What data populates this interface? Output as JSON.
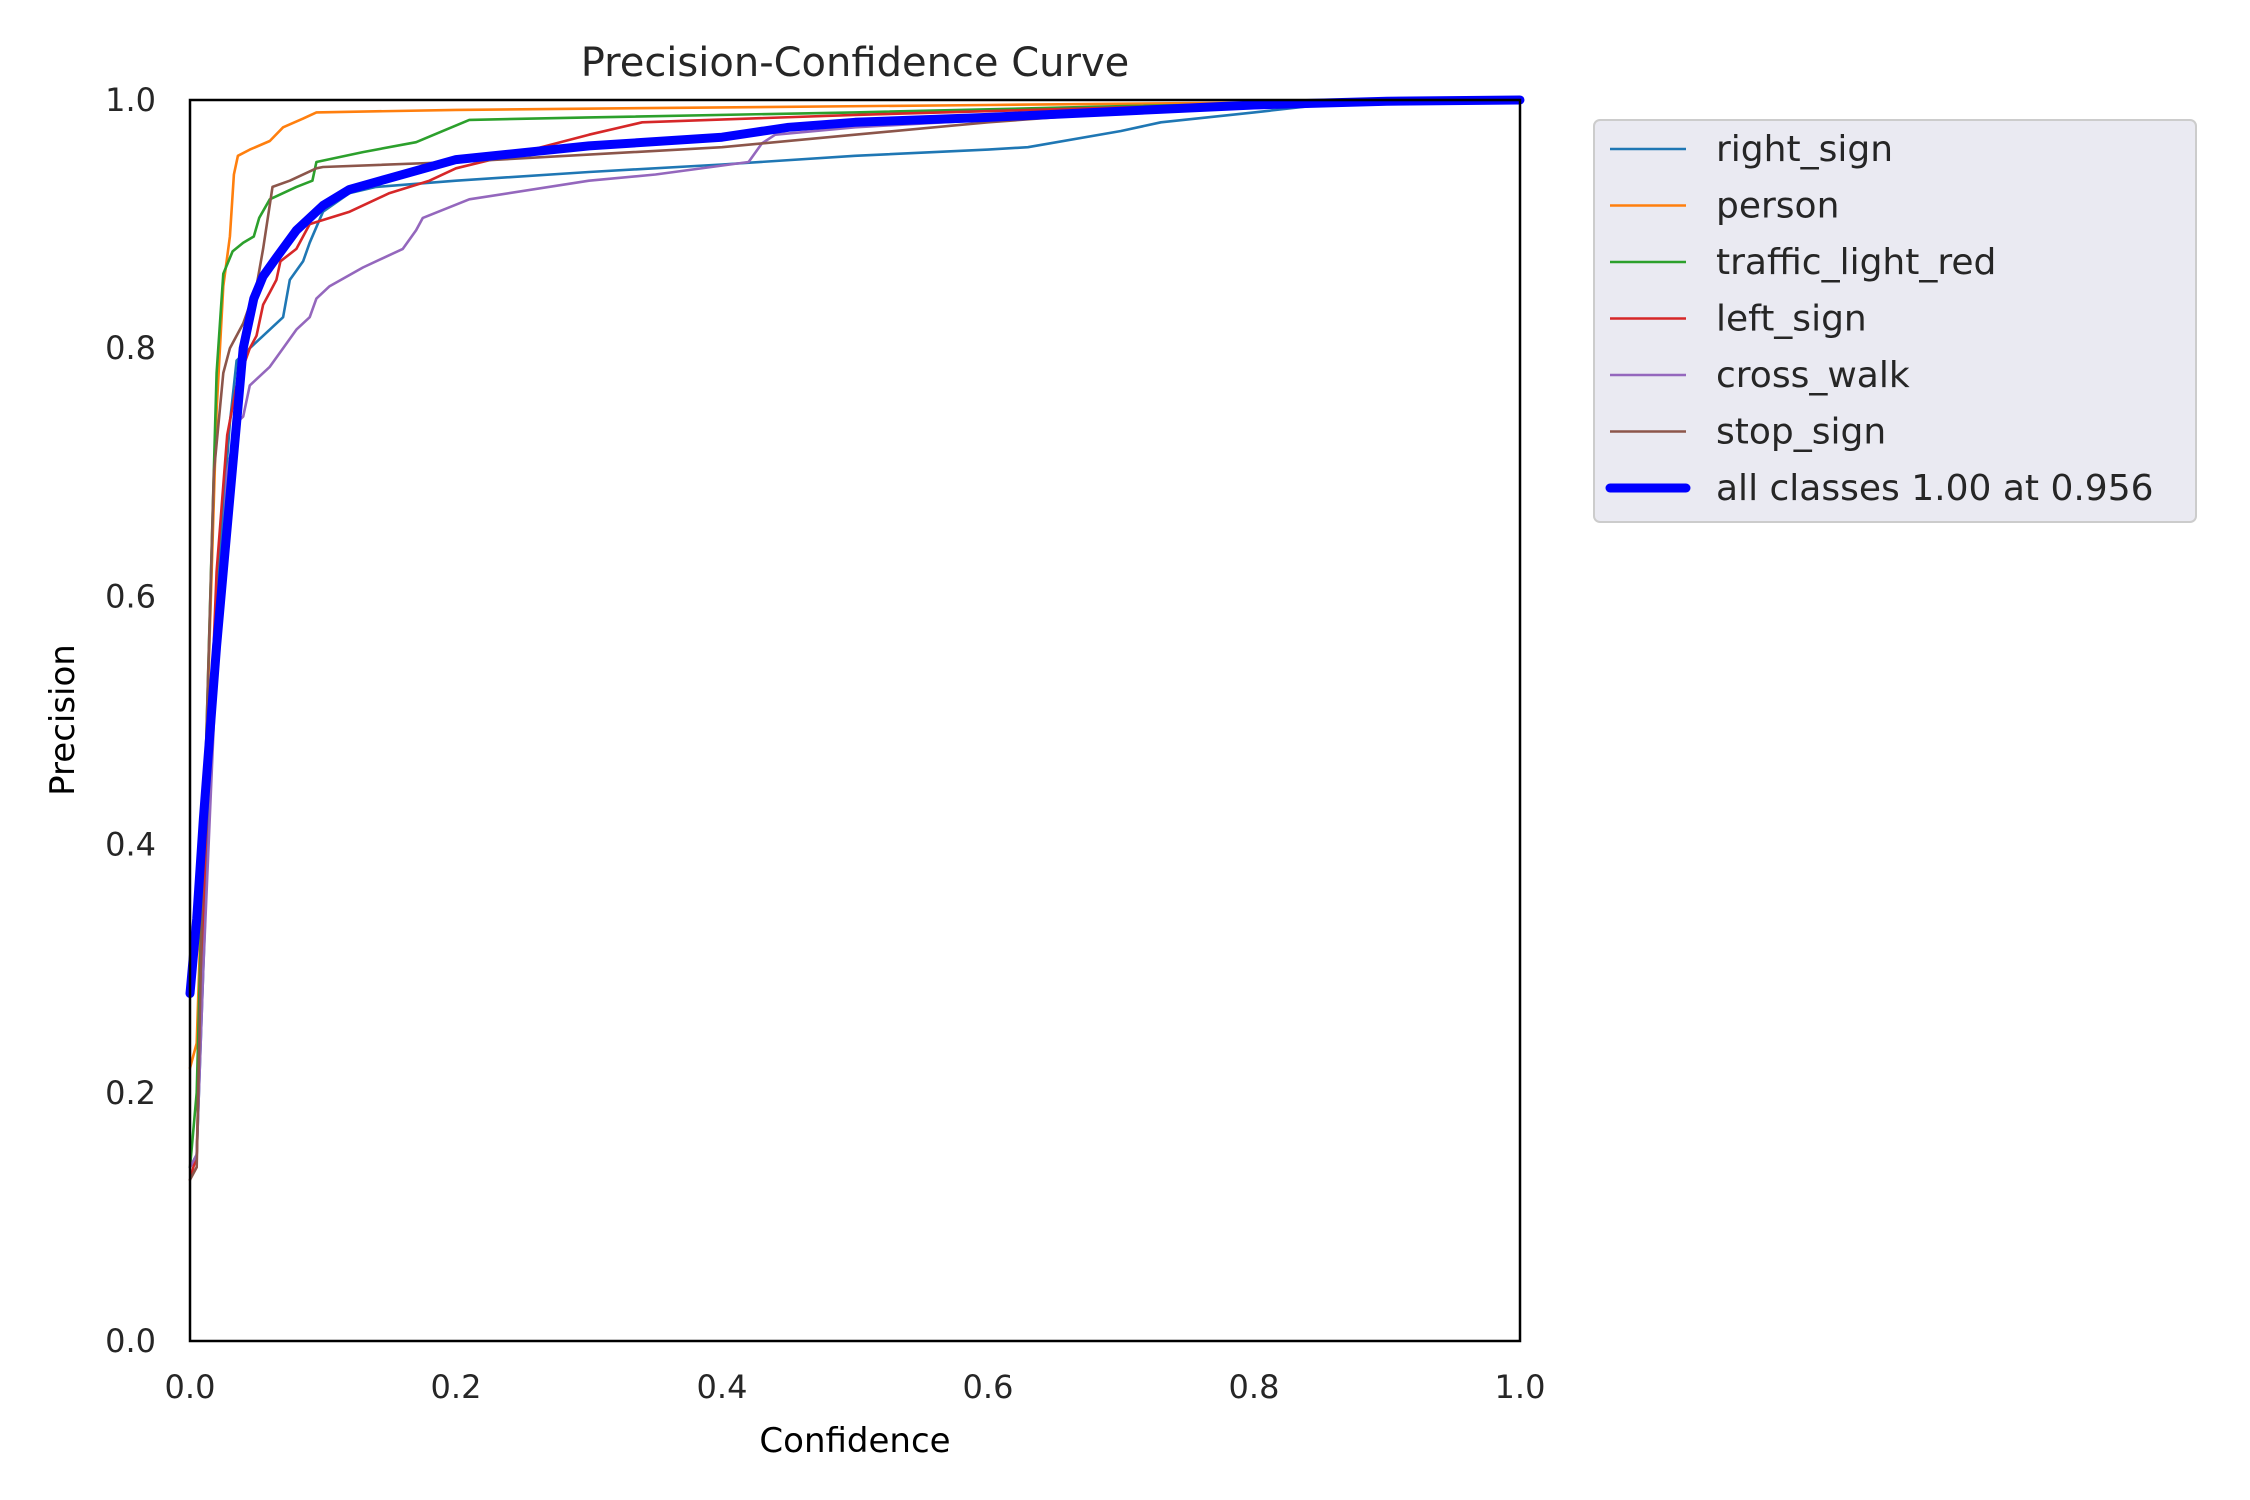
{
  "chart_data": {
    "type": "line",
    "title": "Precision-Confidence Curve",
    "xlabel": "Confidence",
    "ylabel": "Precision",
    "xlim": [
      0,
      1
    ],
    "ylim": [
      0,
      1
    ],
    "x_ticks": [
      "0.0",
      "0.2",
      "0.4",
      "0.6",
      "0.8",
      "1.0"
    ],
    "y_ticks": [
      "0.0",
      "0.2",
      "0.4",
      "0.6",
      "0.8",
      "1.0"
    ],
    "grid": false,
    "legend_position": "outside-top-right",
    "series": [
      {
        "name": "right_sign",
        "color": "#1f77b4",
        "points": [
          [
            0.0,
            0.14
          ],
          [
            0.005,
            0.15
          ],
          [
            0.01,
            0.3
          ],
          [
            0.02,
            0.6
          ],
          [
            0.03,
            0.74
          ],
          [
            0.035,
            0.79
          ],
          [
            0.045,
            0.8
          ],
          [
            0.055,
            0.81
          ],
          [
            0.07,
            0.825
          ],
          [
            0.075,
            0.855
          ],
          [
            0.085,
            0.87
          ],
          [
            0.09,
            0.885
          ],
          [
            0.1,
            0.91
          ],
          [
            0.12,
            0.925
          ],
          [
            0.14,
            0.93
          ],
          [
            0.2,
            0.935
          ],
          [
            0.3,
            0.942
          ],
          [
            0.4,
            0.948
          ],
          [
            0.5,
            0.955
          ],
          [
            0.6,
            0.96
          ],
          [
            0.63,
            0.962
          ],
          [
            0.7,
            0.975
          ],
          [
            0.73,
            0.982
          ],
          [
            0.8,
            0.99
          ],
          [
            0.85,
            0.996
          ],
          [
            0.9,
            0.999
          ],
          [
            1.0,
            1.0
          ]
        ]
      },
      {
        "name": "person",
        "color": "#ff7f0e",
        "points": [
          [
            0.0,
            0.22
          ],
          [
            0.005,
            0.24
          ],
          [
            0.01,
            0.4
          ],
          [
            0.02,
            0.75
          ],
          [
            0.025,
            0.85
          ],
          [
            0.03,
            0.89
          ],
          [
            0.033,
            0.94
          ],
          [
            0.036,
            0.955
          ],
          [
            0.045,
            0.96
          ],
          [
            0.06,
            0.967
          ],
          [
            0.07,
            0.978
          ],
          [
            0.085,
            0.985
          ],
          [
            0.095,
            0.99
          ],
          [
            0.2,
            0.992
          ],
          [
            0.4,
            0.994
          ],
          [
            0.6,
            0.996
          ],
          [
            0.8,
            0.998
          ],
          [
            1.0,
            1.0
          ]
        ]
      },
      {
        "name": "traffic_light_red",
        "color": "#2ca02c",
        "points": [
          [
            0.0,
            0.14
          ],
          [
            0.005,
            0.2
          ],
          [
            0.01,
            0.4
          ],
          [
            0.02,
            0.78
          ],
          [
            0.025,
            0.86
          ],
          [
            0.032,
            0.878
          ],
          [
            0.04,
            0.885
          ],
          [
            0.048,
            0.89
          ],
          [
            0.052,
            0.905
          ],
          [
            0.06,
            0.92
          ],
          [
            0.08,
            0.93
          ],
          [
            0.092,
            0.935
          ],
          [
            0.095,
            0.95
          ],
          [
            0.13,
            0.958
          ],
          [
            0.17,
            0.966
          ],
          [
            0.21,
            0.984
          ],
          [
            0.3,
            0.986
          ],
          [
            0.5,
            0.99
          ],
          [
            0.7,
            0.995
          ],
          [
            0.85,
            0.998
          ],
          [
            1.0,
            1.0
          ]
        ]
      },
      {
        "name": "left_sign",
        "color": "#d62728",
        "points": [
          [
            0.0,
            0.13
          ],
          [
            0.005,
            0.15
          ],
          [
            0.01,
            0.35
          ],
          [
            0.02,
            0.62
          ],
          [
            0.028,
            0.73
          ],
          [
            0.035,
            0.77
          ],
          [
            0.045,
            0.8
          ],
          [
            0.05,
            0.81
          ],
          [
            0.055,
            0.835
          ],
          [
            0.06,
            0.845
          ],
          [
            0.065,
            0.855
          ],
          [
            0.068,
            0.87
          ],
          [
            0.08,
            0.88
          ],
          [
            0.09,
            0.9
          ],
          [
            0.12,
            0.91
          ],
          [
            0.15,
            0.925
          ],
          [
            0.18,
            0.935
          ],
          [
            0.2,
            0.945
          ],
          [
            0.25,
            0.958
          ],
          [
            0.3,
            0.972
          ],
          [
            0.34,
            0.982
          ],
          [
            0.5,
            0.988
          ],
          [
            0.7,
            0.994
          ],
          [
            0.85,
            0.998
          ],
          [
            1.0,
            1.0
          ]
        ]
      },
      {
        "name": "cross_walk",
        "color": "#9467bd",
        "points": [
          [
            0.0,
            0.14
          ],
          [
            0.005,
            0.15
          ],
          [
            0.01,
            0.3
          ],
          [
            0.02,
            0.55
          ],
          [
            0.028,
            0.7
          ],
          [
            0.035,
            0.74
          ],
          [
            0.04,
            0.745
          ],
          [
            0.045,
            0.77
          ],
          [
            0.05,
            0.775
          ],
          [
            0.06,
            0.785
          ],
          [
            0.07,
            0.8
          ],
          [
            0.08,
            0.815
          ],
          [
            0.09,
            0.825
          ],
          [
            0.095,
            0.84
          ],
          [
            0.105,
            0.85
          ],
          [
            0.13,
            0.865
          ],
          [
            0.16,
            0.88
          ],
          [
            0.17,
            0.895
          ],
          [
            0.175,
            0.905
          ],
          [
            0.21,
            0.92
          ],
          [
            0.3,
            0.935
          ],
          [
            0.35,
            0.94
          ],
          [
            0.42,
            0.95
          ],
          [
            0.43,
            0.965
          ],
          [
            0.44,
            0.972
          ],
          [
            0.5,
            0.978
          ],
          [
            0.7,
            0.99
          ],
          [
            0.85,
            0.997
          ],
          [
            1.0,
            1.0
          ]
        ]
      },
      {
        "name": "stop_sign",
        "color": "#8c564b",
        "points": [
          [
            0.0,
            0.13
          ],
          [
            0.005,
            0.14
          ],
          [
            0.01,
            0.4
          ],
          [
            0.018,
            0.7
          ],
          [
            0.025,
            0.78
          ],
          [
            0.03,
            0.8
          ],
          [
            0.04,
            0.82
          ],
          [
            0.05,
            0.85
          ],
          [
            0.055,
            0.88
          ],
          [
            0.062,
            0.93
          ],
          [
            0.075,
            0.935
          ],
          [
            0.095,
            0.945
          ],
          [
            0.1,
            0.946
          ],
          [
            0.2,
            0.95
          ],
          [
            0.3,
            0.956
          ],
          [
            0.4,
            0.962
          ],
          [
            0.5,
            0.972
          ],
          [
            0.6,
            0.982
          ],
          [
            0.7,
            0.99
          ],
          [
            0.8,
            0.996
          ],
          [
            1.0,
            1.0
          ]
        ]
      },
      {
        "name": "all classes 1.00 at 0.956",
        "color": "#0000ff",
        "bold": true,
        "points": [
          [
            0.0,
            0.28
          ],
          [
            0.005,
            0.34
          ],
          [
            0.01,
            0.42
          ],
          [
            0.02,
            0.56
          ],
          [
            0.03,
            0.68
          ],
          [
            0.035,
            0.74
          ],
          [
            0.04,
            0.8
          ],
          [
            0.048,
            0.84
          ],
          [
            0.055,
            0.858
          ],
          [
            0.065,
            0.873
          ],
          [
            0.08,
            0.895
          ],
          [
            0.1,
            0.915
          ],
          [
            0.12,
            0.928
          ],
          [
            0.15,
            0.937
          ],
          [
            0.2,
            0.952
          ],
          [
            0.3,
            0.963
          ],
          [
            0.4,
            0.97
          ],
          [
            0.45,
            0.978
          ],
          [
            0.5,
            0.982
          ],
          [
            0.6,
            0.986
          ],
          [
            0.7,
            0.991
          ],
          [
            0.8,
            0.996
          ],
          [
            0.9,
            0.999
          ],
          [
            1.0,
            1.0
          ]
        ]
      }
    ]
  }
}
